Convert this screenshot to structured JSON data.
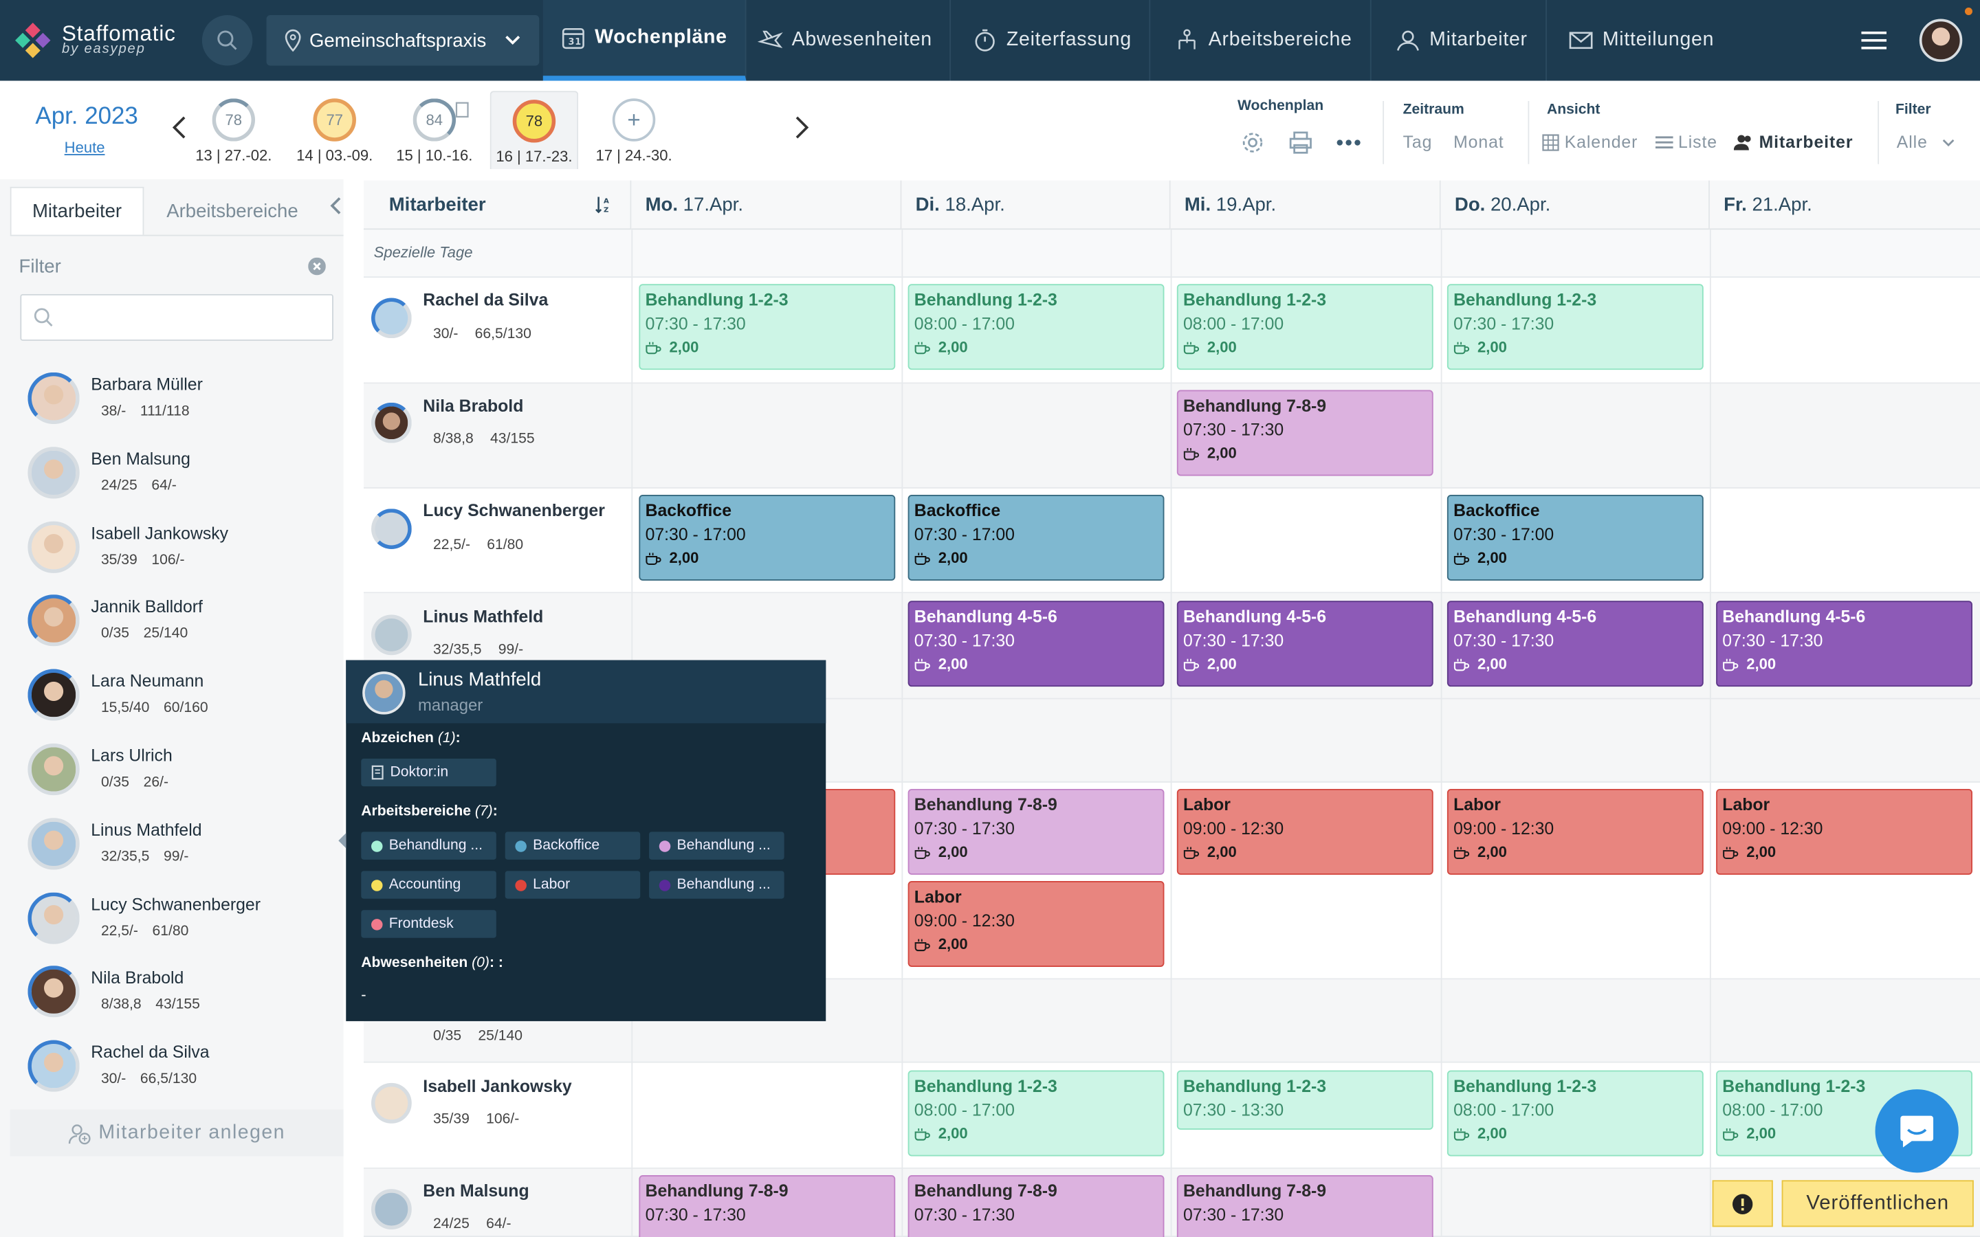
{
  "app": {
    "title": "Staffomatic",
    "subtitle": "by easypep"
  },
  "location": {
    "label": "Gemeinschaftspraxis"
  },
  "nav": [
    {
      "label": "Wochenpläne",
      "icon": "calendar-week-icon",
      "active": true
    },
    {
      "label": "Abwesenheiten",
      "icon": "plane-icon"
    },
    {
      "label": "Zeiterfassung",
      "icon": "stopwatch-icon"
    },
    {
      "label": "Arbeitsbereiche",
      "icon": "sitemap-icon"
    },
    {
      "label": "Mitarbeiter",
      "icon": "user-icon"
    },
    {
      "label": "Mitteilungen",
      "icon": "envelope-icon"
    }
  ],
  "weekbar": {
    "month": "Apr. 2023",
    "today": "Heute",
    "weeks": [
      {
        "value": "78",
        "label": "13 | 27.-02."
      },
      {
        "value": "77",
        "label": "14 | 03.-09."
      },
      {
        "value": "84",
        "label": "15 | 10.-16."
      },
      {
        "value": "78",
        "label": "16 | 17.-23.",
        "active": true
      },
      {
        "value": "+",
        "label": "17 | 24.-30."
      }
    ],
    "wochenplan": "Wochenplan",
    "zeitraum": "Zeitraum",
    "tag": "Tag",
    "monat": "Monat",
    "ansicht": "Ansicht",
    "kalender": "Kalender",
    "liste": "Liste",
    "mitarbeiter": "Mitarbeiter",
    "filter": "Filter",
    "alle": "Alle"
  },
  "sidebar": {
    "tab1": "Mitarbeiter",
    "tab2": "Arbeitsbereiche",
    "filter": "Filter",
    "add": "Mitarbeiter anlegen",
    "employees": [
      {
        "name": "Barbara Müller",
        "s1": "38/-",
        "s2": "111/118"
      },
      {
        "name": "Ben Malsung",
        "s1": "24/25",
        "s2": "64/-"
      },
      {
        "name": "Isabell Jankowsky",
        "s1": "35/39",
        "s2": "106/-"
      },
      {
        "name": "Jannik Balldorf",
        "s1": "0/35",
        "s2": "25/140"
      },
      {
        "name": "Lara Neumann",
        "s1": "15,5/40",
        "s2": "60/160"
      },
      {
        "name": "Lars Ulrich",
        "s1": "0/35",
        "s2": "26/-"
      },
      {
        "name": "Linus Mathfeld",
        "s1": "32/35,5",
        "s2": "99/-"
      },
      {
        "name": "Lucy Schwanenberger",
        "s1": "22,5/-",
        "s2": "61/80"
      },
      {
        "name": "Nila Brabold",
        "s1": "8/38,8",
        "s2": "43/155"
      },
      {
        "name": "Rachel da Silva",
        "s1": "30/-",
        "s2": "66,5/130"
      }
    ]
  },
  "grid": {
    "header": "Mitarbeiter",
    "days": [
      {
        "d": "Mo.",
        "date": "17.Apr."
      },
      {
        "d": "Di.",
        "date": "18.Apr."
      },
      {
        "d": "Mi.",
        "date": "19.Apr."
      },
      {
        "d": "Do.",
        "date": "20.Apr."
      },
      {
        "d": "Fr.",
        "date": "21.Apr."
      }
    ],
    "special": "Spezielle Tage",
    "rows": [
      {
        "name": "Rachel da Silva",
        "s1": "30/-",
        "s2": "66,5/130"
      },
      {
        "name": "Nila Brabold",
        "s1": "8/38,8",
        "s2": "43/155"
      },
      {
        "name": "Lucy Schwanenberger",
        "s1": "22,5/-",
        "s2": "61/80"
      },
      {
        "name": "Linus Mathfeld",
        "s1": "32/35,5",
        "s2": "99/-"
      },
      {
        "name": "",
        "s1": "0/35",
        "s2": "25/140"
      },
      {
        "name": "Isabell Jankowsky",
        "s1": "35/39",
        "s2": "106/-"
      },
      {
        "name": "Ben Malsung",
        "s1": "24/25",
        "s2": "64/-"
      }
    ],
    "shifts": {
      "b123": "Behandlung 1-2-3",
      "b789": "Behandlung 7-8-9",
      "b456": "Behandlung 4-5-6",
      "back": "Backoffice",
      "labor": "Labor",
      "t1": "07:30 - 17:30",
      "t2": "08:00 - 17:00",
      "t3": "07:30 - 17:00",
      "t4": "09:00 - 12:30",
      "t5": "07:30 - 13:30",
      "brk": "2,00"
    }
  },
  "popup": {
    "name": "Linus Mathfeld",
    "role": "manager",
    "badges_label": "Abzeichen",
    "badges_count": "(1)",
    "badges": [
      "Doktor:in"
    ],
    "areas_label": "Arbeitsbereiche",
    "areas_count": "(7)",
    "areas": [
      {
        "label": "Behandlung ...",
        "color": "#a6f0d6"
      },
      {
        "label": "Backoffice",
        "color": "#5aa8cc"
      },
      {
        "label": "Behandlung ...",
        "color": "#d59ddb"
      },
      {
        "label": "Accounting",
        "color": "#f5df5a"
      },
      {
        "label": "Labor",
        "color": "#e0463c"
      },
      {
        "label": "Behandlung ...",
        "color": "#5a2a9a"
      },
      {
        "label": "Frontdesk",
        "color": "#f07a8c"
      }
    ],
    "abs_label": "Abwesenheiten",
    "abs_count": "(0)",
    "abs_suffix": ": :",
    "abs_value": "-"
  },
  "actions": {
    "publish": "Veröffentlichen"
  }
}
